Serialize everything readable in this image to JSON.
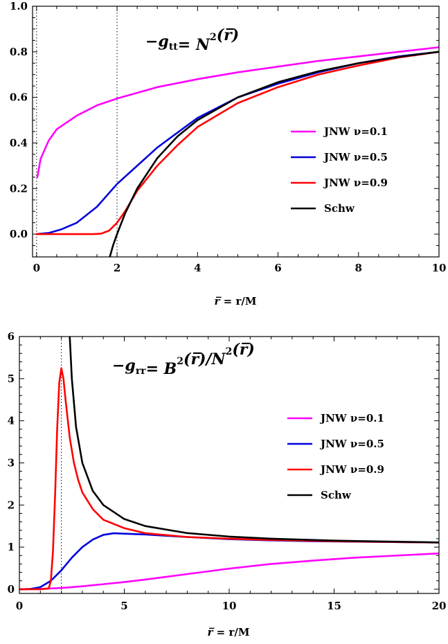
{
  "chart_data": [
    {
      "type": "line",
      "title": "−gₜₜ= N²(r̅)",
      "title_main": "−g",
      "title_sub": "tt",
      "title_rest": "= N",
      "title_sup": "2",
      "title_arg": "(r̅)",
      "xlabel": "r̅ = r/M",
      "xlabel_bar": "r̅",
      "xlabel_rest": " = r/M",
      "ylabel": "",
      "xlim": [
        -0.1,
        10
      ],
      "ylim": [
        -0.1,
        1.0
      ],
      "xticks": [
        0,
        2,
        4,
        6,
        8,
        10
      ],
      "yticks": [
        0.0,
        0.2,
        0.4,
        0.6,
        0.8,
        1.0
      ],
      "ytick_labels": [
        "0.0",
        "0.2",
        "0.4",
        "0.6",
        "0.8",
        "1.0"
      ],
      "vertical_lines": [
        0,
        2
      ],
      "legend_position": "right",
      "series": [
        {
          "name": "JNW ν=0.1",
          "color": "#ff00ff",
          "x": [
            0.02,
            0.1,
            0.3,
            0.5,
            1,
            1.5,
            2,
            3,
            4,
            5,
            6,
            7,
            8,
            9,
            10
          ],
          "y": [
            0.25,
            0.33,
            0.41,
            0.46,
            0.52,
            0.565,
            0.595,
            0.645,
            0.68,
            0.71,
            0.735,
            0.76,
            0.78,
            0.8,
            0.82
          ]
        },
        {
          "name": "JNW ν=0.5",
          "color": "#0000dd",
          "x": [
            0,
            0.3,
            0.6,
            1,
            1.5,
            2,
            2.5,
            3,
            4,
            5,
            6,
            7,
            8,
            9,
            10
          ],
          "y": [
            0,
            0.005,
            0.02,
            0.05,
            0.12,
            0.22,
            0.3,
            0.38,
            0.51,
            0.6,
            0.66,
            0.71,
            0.75,
            0.78,
            0.8
          ]
        },
        {
          "name": "JNW ν=0.9",
          "color": "#ff0000",
          "x": [
            0,
            0.5,
            1,
            1.4,
            1.6,
            1.8,
            2,
            2.2,
            2.5,
            3,
            3.5,
            4,
            5,
            6,
            7,
            8,
            9,
            10
          ],
          "y": [
            0,
            0,
            0,
            0,
            0.002,
            0.015,
            0.05,
            0.1,
            0.19,
            0.3,
            0.39,
            0.47,
            0.575,
            0.645,
            0.7,
            0.74,
            0.775,
            0.8
          ]
        },
        {
          "name": "Schw",
          "color": "#000000",
          "x": [
            1.82,
            1.9,
            2,
            2.2,
            2.5,
            3,
            3.5,
            4,
            5,
            6,
            7,
            8,
            9,
            10
          ],
          "y": [
            -0.1,
            -0.05,
            0,
            0.0909,
            0.2,
            0.3333,
            0.4286,
            0.5,
            0.6,
            0.6667,
            0.7143,
            0.75,
            0.7778,
            0.8
          ]
        }
      ]
    },
    {
      "type": "line",
      "title": "−gᵣᵣ= B²(r̅)/N²(r̅)",
      "title_main": "−g",
      "title_sub": "rr",
      "title_rest": "= B",
      "title_sup": "2",
      "title_arg": "(r̅)/N",
      "title_sup2": "2",
      "title_arg2": "(r̅)",
      "xlabel": "r̅ = r/M",
      "xlabel_bar": "r̅",
      "xlabel_rest": " = r/M",
      "ylabel": "",
      "xlim": [
        0,
        20
      ],
      "ylim": [
        -0.1,
        6
      ],
      "xticks": [
        0,
        5,
        10,
        15,
        20
      ],
      "yticks": [
        0,
        1,
        2,
        3,
        4,
        5,
        6
      ],
      "ytick_labels": [
        "0",
        "1",
        "2",
        "3",
        "4",
        "5",
        "6"
      ],
      "vertical_lines": [
        2
      ],
      "legend_position": "right",
      "series": [
        {
          "name": "JNW ν=0.1",
          "color": "#ff00ff",
          "x": [
            0,
            1,
            2,
            3,
            4,
            5,
            6,
            8,
            10,
            12,
            14,
            16,
            18,
            20
          ],
          "y": [
            0,
            0.005,
            0.03,
            0.07,
            0.12,
            0.17,
            0.23,
            0.36,
            0.49,
            0.6,
            0.68,
            0.75,
            0.8,
            0.85
          ]
        },
        {
          "name": "JNW ν=0.5",
          "color": "#0000dd",
          "x": [
            0,
            0.5,
            1,
            1.5,
            2,
            2.5,
            3,
            3.5,
            4,
            4.5,
            5,
            6,
            7,
            8,
            10,
            12,
            14,
            16,
            18,
            20
          ],
          "y": [
            0,
            0.005,
            0.05,
            0.2,
            0.45,
            0.75,
            1.0,
            1.18,
            1.29,
            1.33,
            1.32,
            1.3,
            1.27,
            1.24,
            1.19,
            1.16,
            1.14,
            1.13,
            1.12,
            1.11
          ]
        },
        {
          "name": "JNW ν=0.9",
          "color": "#ff0000",
          "x": [
            0,
            1,
            1.4,
            1.5,
            1.6,
            1.7,
            1.8,
            1.9,
            2.0,
            2.1,
            2.2,
            2.4,
            2.6,
            2.8,
            3,
            3.5,
            4,
            5,
            6,
            8,
            10,
            12,
            15,
            20
          ],
          "y": [
            0,
            0,
            0.02,
            0.2,
            0.9,
            2.2,
            3.8,
            4.9,
            5.25,
            5.0,
            4.5,
            3.6,
            3.0,
            2.6,
            2.3,
            1.9,
            1.65,
            1.45,
            1.33,
            1.24,
            1.2,
            1.17,
            1.14,
            1.11
          ]
        },
        {
          "name": "Schw",
          "color": "#000000",
          "x": [
            2.4,
            2.5,
            2.7,
            3,
            3.5,
            4,
            5,
            6,
            8,
            10,
            12,
            15,
            20
          ],
          "y": [
            6.0,
            5.0,
            3.857,
            3.0,
            2.333,
            2.0,
            1.667,
            1.5,
            1.333,
            1.25,
            1.2,
            1.154,
            1.111
          ]
        }
      ]
    }
  ]
}
